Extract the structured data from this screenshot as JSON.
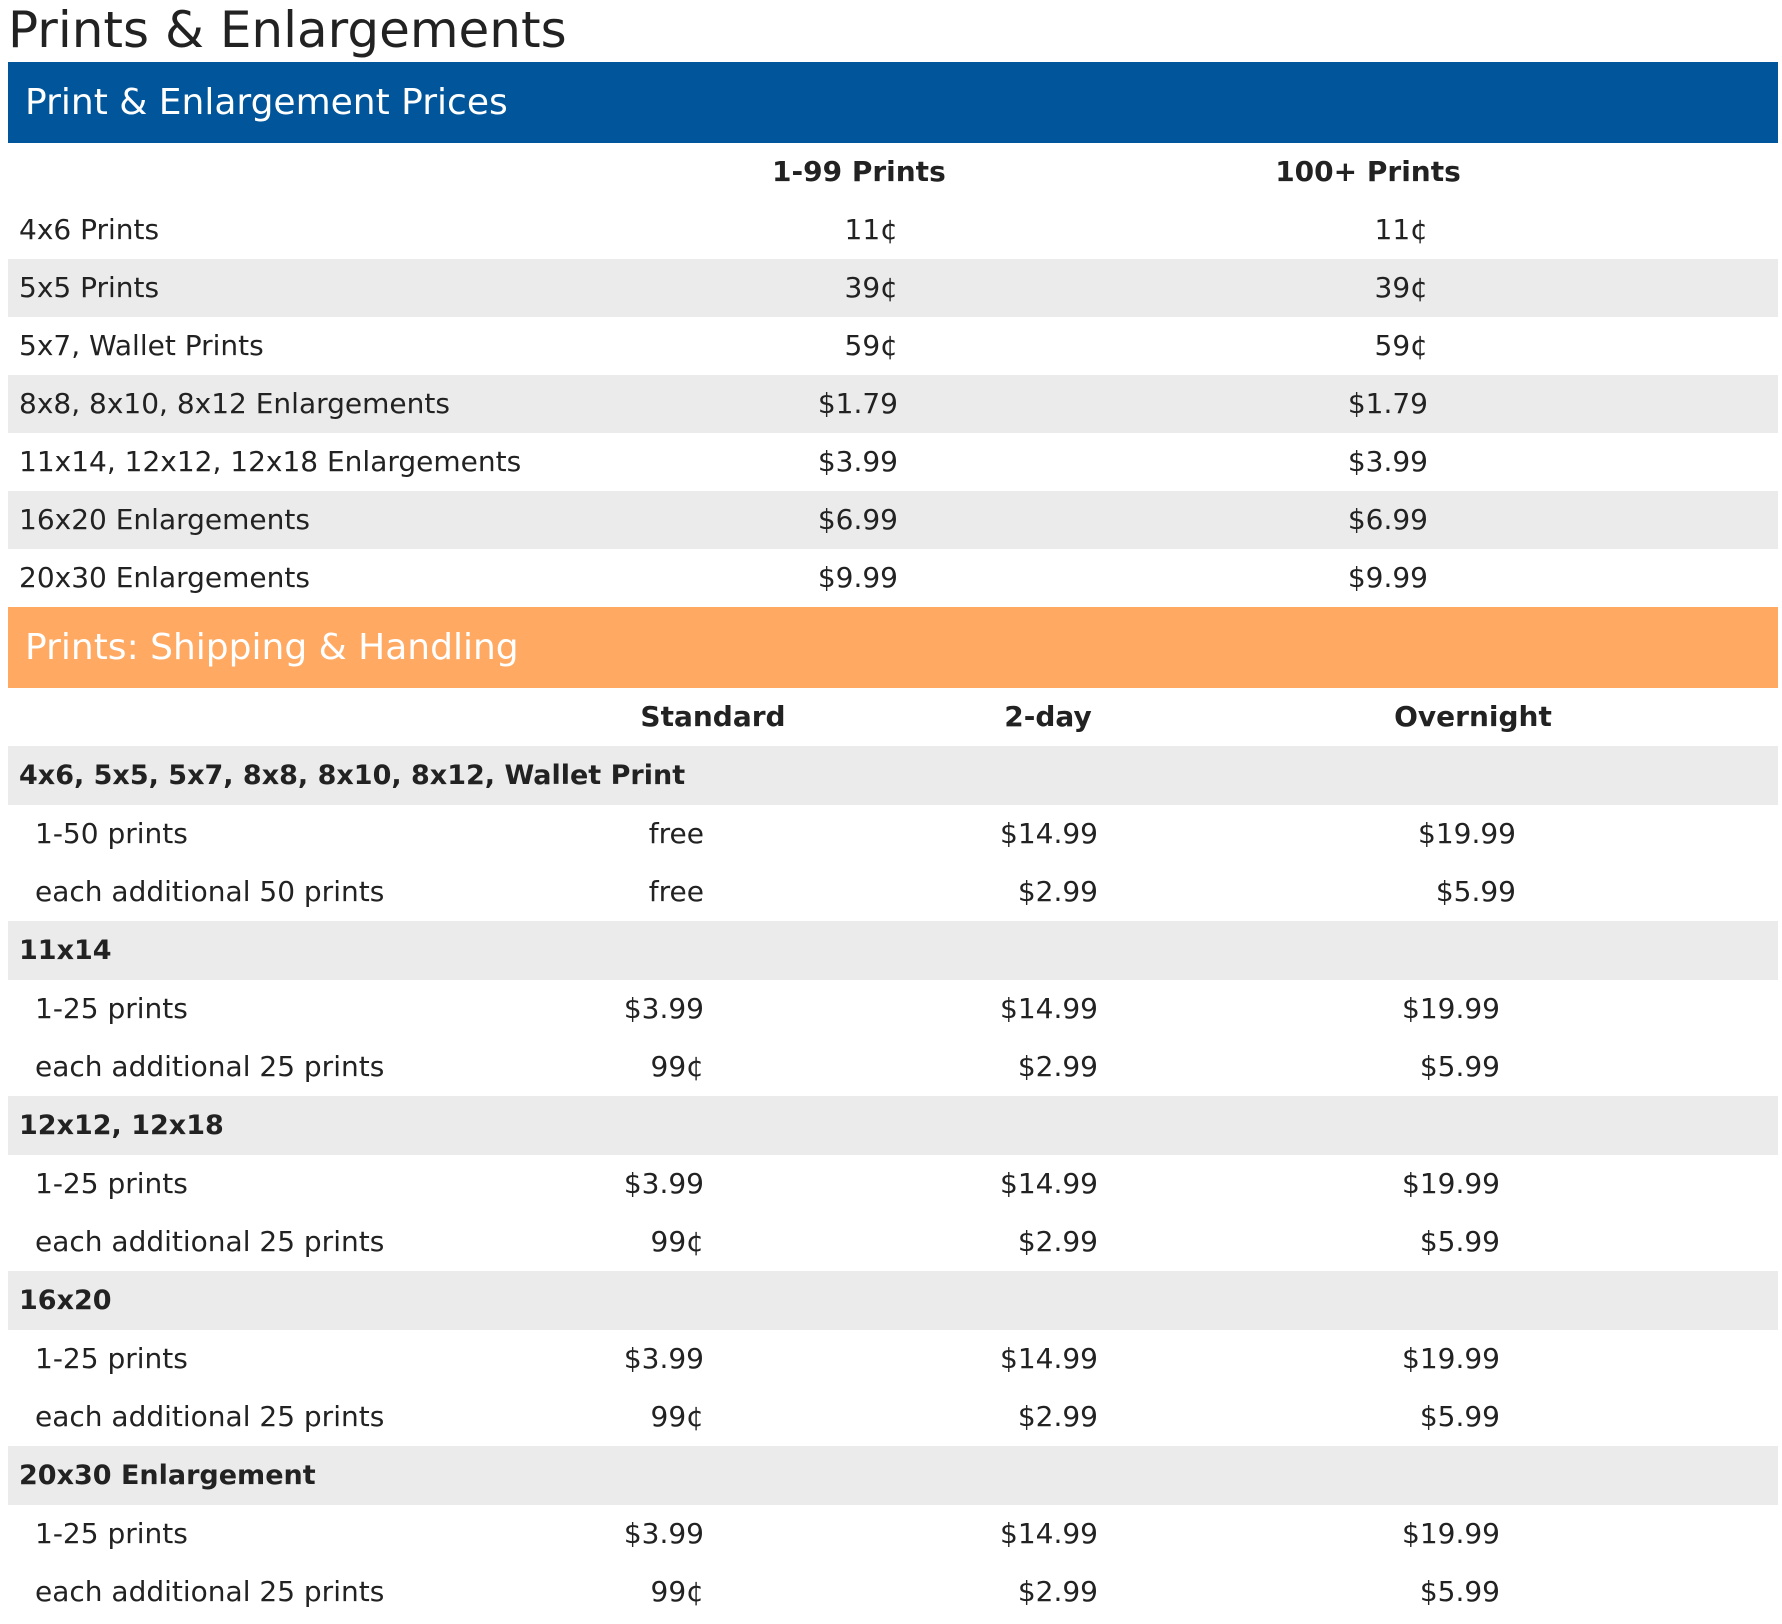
{
  "page_title": "Prints & Enlargements",
  "colors": {
    "price_bar": "#00559b",
    "shipping_bar": "#ffa962",
    "row_shade": "#ebebeb"
  },
  "price_section": {
    "title": "Print & Enlargement Prices",
    "headers": [
      "1-99 Prints",
      "100+ Prints"
    ],
    "rows": [
      {
        "label": "4x6 Prints",
        "values": [
          "11¢",
          "11¢"
        ]
      },
      {
        "label": "5x5 Prints",
        "values": [
          "39¢",
          "39¢"
        ]
      },
      {
        "label": "5x7, Wallet Prints",
        "values": [
          "59¢",
          "59¢"
        ]
      },
      {
        "label": "8x8, 8x10, 8x12 Enlargements",
        "values": [
          "$1.79",
          "$1.79"
        ]
      },
      {
        "label": "11x14, 12x12, 12x18 Enlargements",
        "values": [
          "$3.99",
          "$3.99"
        ]
      },
      {
        "label": "16x20 Enlargements",
        "values": [
          "$6.99",
          "$6.99"
        ]
      },
      {
        "label": "20x30 Enlargements",
        "values": [
          "$9.99",
          "$9.99"
        ]
      }
    ]
  },
  "shipping_section": {
    "title": "Prints: Shipping & Handling",
    "headers": [
      "Standard",
      "2-day",
      "Overnight"
    ],
    "groups": [
      {
        "name": "4x6, 5x5, 5x7, 8x8, 8x10, 8x12, Wallet Print",
        "rows": [
          {
            "label": "1-50 prints",
            "values": [
              "free",
              "$14.99",
              "$19.99"
            ]
          },
          {
            "label": "each additional 50 prints",
            "values": [
              "free",
              "$2.99",
              "$5.99"
            ]
          }
        ]
      },
      {
        "name": "11x14",
        "rows": [
          {
            "label": "1-25 prints",
            "values": [
              "$3.99",
              "$14.99",
              "$19.99"
            ]
          },
          {
            "label": "each additional 25 prints",
            "values": [
              "99¢",
              "$2.99",
              "$5.99"
            ]
          }
        ]
      },
      {
        "name": "12x12, 12x18",
        "rows": [
          {
            "label": "1-25 prints",
            "values": [
              "$3.99",
              "$14.99",
              "$19.99"
            ]
          },
          {
            "label": "each additional 25 prints",
            "values": [
              "99¢",
              "$2.99",
              "$5.99"
            ]
          }
        ]
      },
      {
        "name": "16x20",
        "rows": [
          {
            "label": "1-25 prints",
            "values": [
              "$3.99",
              "$14.99",
              "$19.99"
            ]
          },
          {
            "label": "each additional 25 prints",
            "values": [
              "99¢",
              "$2.99",
              "$5.99"
            ]
          }
        ]
      },
      {
        "name": "20x30 Enlargement",
        "rows": [
          {
            "label": "1-25 prints",
            "values": [
              "$3.99",
              "$14.99",
              "$19.99"
            ]
          },
          {
            "label": "each additional 25 prints",
            "values": [
              "99¢",
              "$2.99",
              "$5.99"
            ]
          }
        ]
      }
    ]
  }
}
